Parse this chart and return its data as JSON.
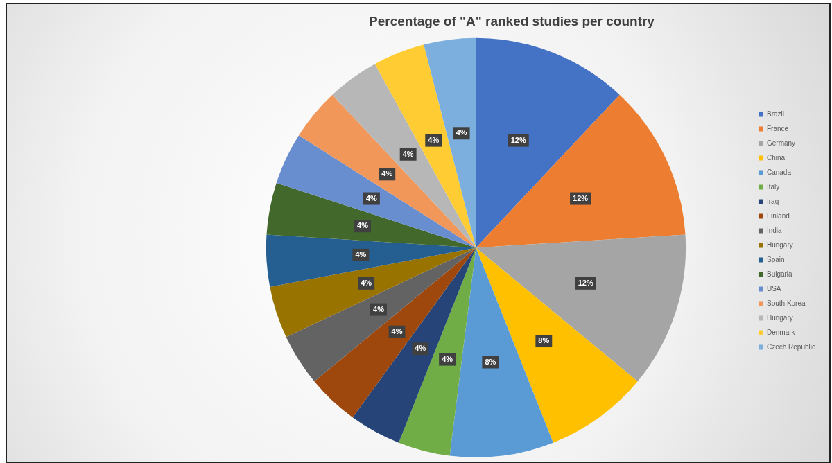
{
  "chart_data": {
    "type": "pie",
    "title": "Percentage of \"A\" ranked studies per country",
    "categories": [
      "Brazil",
      "France",
      "Germany",
      "China",
      "Canada",
      "Italy",
      "Iraq",
      "Finland",
      "India",
      "Hungary",
      "Spain",
      "Bulgaria",
      "USA",
      "South Korea",
      "Hungary",
      "Denmark",
      "Czech Republic"
    ],
    "values": [
      12,
      12,
      12,
      8,
      8,
      4,
      4,
      4,
      4,
      4,
      4,
      4,
      4,
      4,
      4,
      4,
      4
    ],
    "value_labels": [
      "12%",
      "12%",
      "12%",
      "8%",
      "8%",
      "4%",
      "4%",
      "4%",
      "4%",
      "4%",
      "4%",
      "4%",
      "4%",
      "4%",
      "4%",
      "4%",
      "4%"
    ],
    "colors": [
      "#4472c4",
      "#ed7d31",
      "#a5a5a5",
      "#ffc000",
      "#5b9bd5",
      "#70ad47",
      "#264478",
      "#9e480e",
      "#636363",
      "#997300",
      "#255e91",
      "#43682b",
      "#698ed0",
      "#f1975a",
      "#b7b7b7",
      "#ffcd33",
      "#7cafdd"
    ],
    "legend": "right"
  }
}
